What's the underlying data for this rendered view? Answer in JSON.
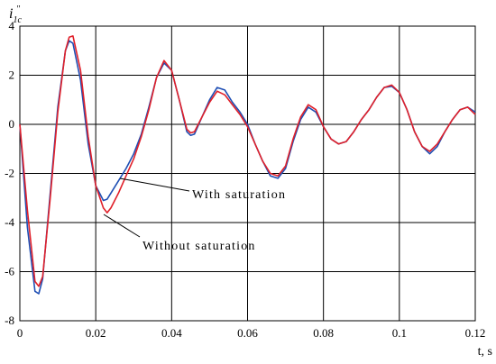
{
  "chart_data": {
    "type": "line",
    "ylabel": {
      "main": "i",
      "sub": "1c",
      "sup": "″"
    },
    "xlabel": "t, s",
    "x": [
      0,
      0.002,
      0.004,
      0.005,
      0.006,
      0.008,
      0.01,
      0.012,
      0.013,
      0.014,
      0.016,
      0.018,
      0.02,
      0.022,
      0.023,
      0.024,
      0.026,
      0.028,
      0.03,
      0.032,
      0.034,
      0.036,
      0.038,
      0.04,
      0.042,
      0.044,
      0.045,
      0.046,
      0.048,
      0.05,
      0.052,
      0.054,
      0.056,
      0.058,
      0.06,
      0.062,
      0.064,
      0.066,
      0.068,
      0.07,
      0.072,
      0.074,
      0.076,
      0.078,
      0.08,
      0.082,
      0.084,
      0.086,
      0.088,
      0.09,
      0.092,
      0.094,
      0.096,
      0.098,
      0.1,
      0.102,
      0.104,
      0.106,
      0.108,
      0.11,
      0.112,
      0.114,
      0.116,
      0.118,
      0.12
    ],
    "series": [
      {
        "color": "#1f4fb4",
        "values": [
          0,
          -4.2,
          -6.8,
          -6.9,
          -6.3,
          -2.8,
          0.7,
          3.0,
          3.4,
          3.3,
          1.8,
          -0.8,
          -2.5,
          -3.1,
          -3.05,
          -2.8,
          -2.3,
          -1.8,
          -1.2,
          -0.4,
          0.7,
          1.9,
          2.5,
          2.2,
          1.0,
          -0.3,
          -0.45,
          -0.4,
          0.3,
          1.0,
          1.5,
          1.4,
          0.9,
          0.5,
          0.0,
          -0.8,
          -1.5,
          -2.1,
          -2.2,
          -1.8,
          -0.7,
          0.2,
          0.7,
          0.5,
          -0.1,
          -0.6,
          -0.8,
          -0.7,
          -0.3,
          0.2,
          0.6,
          1.1,
          1.5,
          1.55,
          1.3,
          0.6,
          -0.3,
          -0.9,
          -1.2,
          -0.9,
          -0.3,
          0.2,
          0.6,
          0.7,
          0.5
        ]
      },
      {
        "color": "#e0202a",
        "values": [
          0,
          -3.5,
          -6.4,
          -6.6,
          -6.2,
          -3.0,
          0.5,
          3.0,
          3.55,
          3.6,
          2.2,
          -0.5,
          -2.5,
          -3.4,
          -3.6,
          -3.4,
          -2.8,
          -2.1,
          -1.4,
          -0.5,
          0.6,
          1.9,
          2.6,
          2.2,
          1.0,
          -0.2,
          -0.35,
          -0.3,
          0.3,
          0.9,
          1.35,
          1.2,
          0.8,
          0.4,
          -0.1,
          -0.8,
          -1.5,
          -2.0,
          -2.1,
          -1.7,
          -0.6,
          0.3,
          0.8,
          0.6,
          -0.1,
          -0.6,
          -0.8,
          -0.7,
          -0.3,
          0.2,
          0.6,
          1.1,
          1.5,
          1.6,
          1.3,
          0.6,
          -0.3,
          -0.9,
          -1.1,
          -0.8,
          -0.3,
          0.2,
          0.6,
          0.7,
          0.4
        ]
      }
    ],
    "annotations": [
      "With saturation",
      "Without saturation"
    ],
    "xlim": [
      0,
      0.12
    ],
    "xticks": [
      0,
      0.02,
      0.04,
      0.06,
      0.08,
      0.1,
      0.12
    ],
    "ylim": [
      -8,
      4
    ],
    "yticks": [
      -8,
      -6,
      -4,
      -2,
      0,
      2,
      4
    ],
    "grid": true
  }
}
